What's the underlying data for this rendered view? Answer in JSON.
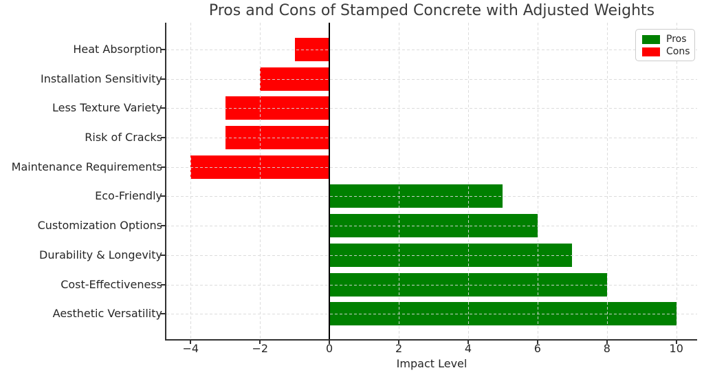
{
  "chart_data": {
    "type": "bar",
    "orientation": "horizontal",
    "title": "Pros and Cons of Stamped Concrete with Adjusted Weights",
    "xlabel": "Impact Level",
    "ylabel": "",
    "categories": [
      "Heat Absorption",
      "Installation Sensitivity",
      "Less Texture Variety",
      "Risk of Cracks",
      "Maintenance Requirements",
      "Eco-Friendly",
      "Customization Options",
      "Durability & Longevity",
      "Cost-Effectiveness",
      "Aesthetic Versatility"
    ],
    "values": [
      -1,
      -2,
      -3,
      -3,
      -4,
      5,
      6,
      7,
      8,
      10
    ],
    "groups": [
      "cons",
      "cons",
      "cons",
      "cons",
      "cons",
      "pros",
      "pros",
      "pros",
      "pros",
      "pros"
    ],
    "group_colors": {
      "pros": "#008000",
      "cons": "#ff0000"
    },
    "xticks": {
      "values": [
        -4,
        -2,
        0,
        2,
        4,
        6,
        8,
        10
      ],
      "labels": [
        "−4",
        "−2",
        "0",
        "2",
        "4",
        "6",
        "8",
        "10"
      ]
    },
    "xlim": [
      -4.7,
      10.6
    ],
    "grid": {
      "visible": true,
      "style": "dashed",
      "color": "#d9d9d9"
    },
    "zero_line": {
      "x": 0,
      "color": "#000000"
    },
    "bar_height_frac": 0.8,
    "legend": {
      "position": "upper right",
      "entries": [
        {
          "label": "Pros",
          "color": "#008000"
        },
        {
          "label": "Cons",
          "color": "#ff0000"
        }
      ]
    }
  }
}
